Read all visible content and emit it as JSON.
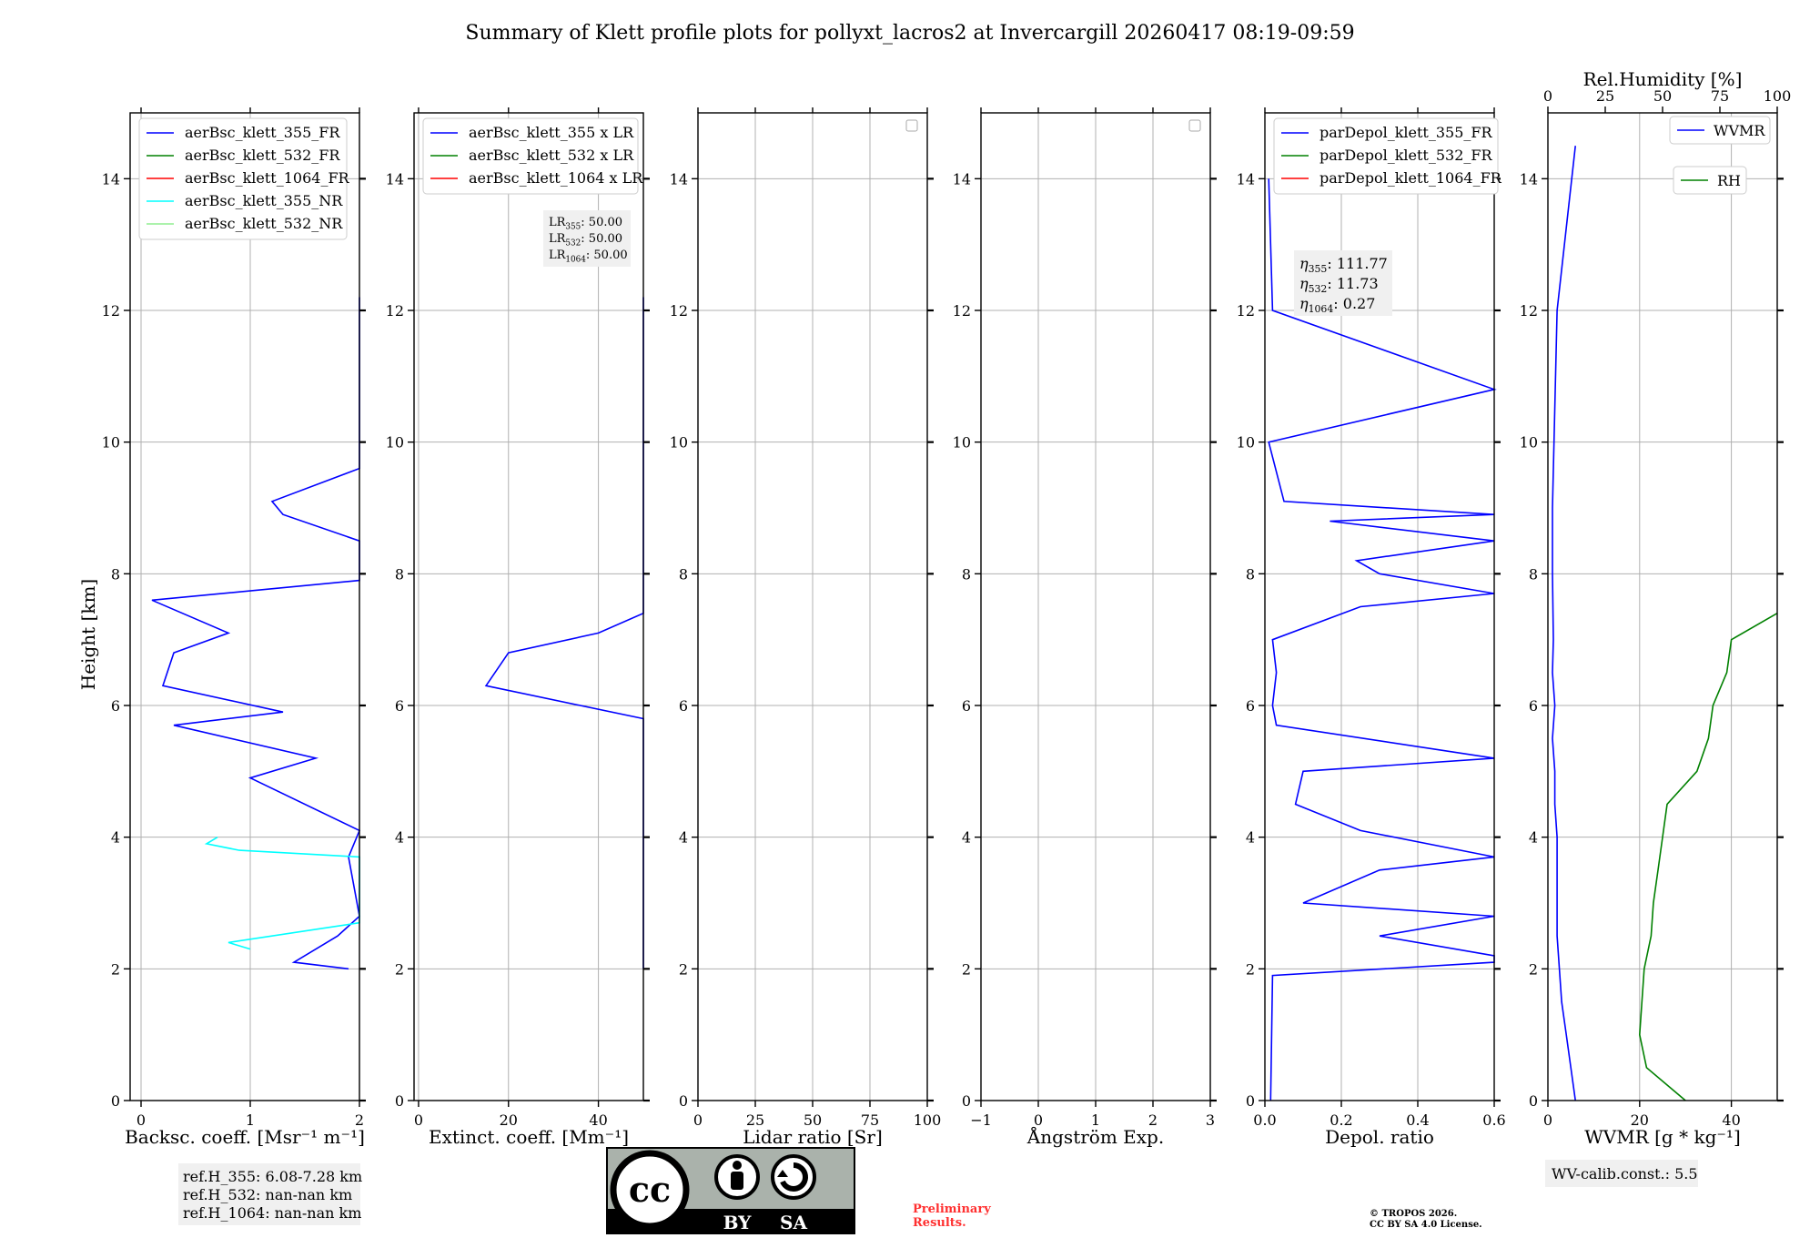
{
  "title": "Summary of Klett profile plots for pollyxt_lacros2 at Invercargill 20260417 08:19-09:59",
  "ylabel": "Height [km]",
  "panels": [
    {
      "id": "backscatter",
      "xlabel": "Backsc. coeff. [Msr⁻¹ m⁻¹]",
      "xlim": [
        -0.1,
        2.0
      ],
      "xticks": [
        0,
        1,
        2
      ],
      "xtick_labels": [
        "0",
        "1",
        "2"
      ],
      "legend": [
        {
          "label": "aerBsc_klett_355_FR",
          "color": "#0000ff"
        },
        {
          "label": "aerBsc_klett_532_FR",
          "color": "#008000"
        },
        {
          "label": "aerBsc_klett_1064_FR",
          "color": "#ff0000"
        },
        {
          "label": "aerBsc_klett_355_NR",
          "color": "#00ffff"
        },
        {
          "label": "aerBsc_klett_532_NR",
          "color": "#90ee90"
        }
      ],
      "refs": [
        "ref.H_355: 6.08-7.28 km",
        "ref.H_532: nan-nan km",
        "ref.H_1064: nan-nan km"
      ]
    },
    {
      "id": "extinction",
      "xlabel": "Extinct. coeff. [Mm⁻¹]",
      "xlim": [
        -1,
        50
      ],
      "xticks": [
        0,
        20,
        40
      ],
      "xtick_labels": [
        "0",
        "20",
        "40"
      ],
      "legend": [
        {
          "label": "aerBsc_klett_355 x LR",
          "color": "#0000ff"
        },
        {
          "label": "aerBsc_klett_532 x LR",
          "color": "#008000"
        },
        {
          "label": "aerBsc_klett_1064 x LR",
          "color": "#ff0000"
        }
      ],
      "lr_box": [
        {
          "base": "LR",
          "sub": "355",
          "value": ": 50.00"
        },
        {
          "base": "LR",
          "sub": "532",
          "value": ": 50.00"
        },
        {
          "base": "LR",
          "sub": "1064",
          "value": ": 50.00"
        }
      ]
    },
    {
      "id": "lidar_ratio",
      "xlabel": "Lidar ratio [Sr]",
      "xlim": [
        0,
        100
      ],
      "xticks": [
        0,
        25,
        50,
        75,
        100
      ],
      "xtick_labels": [
        "0",
        "25",
        "50",
        "75",
        "100"
      ]
    },
    {
      "id": "angstrom",
      "xlabel": "Ångström Exp.",
      "xlim": [
        -1,
        3
      ],
      "xticks": [
        -1,
        0,
        1,
        2,
        3
      ],
      "xtick_labels": [
        "−1",
        "0",
        "1",
        "2",
        "3"
      ]
    },
    {
      "id": "depol",
      "xlabel": "Depol. ratio",
      "xlim": [
        0,
        0.6
      ],
      "xticks": [
        0,
        0.2,
        0.4,
        0.6
      ],
      "xtick_labels": [
        "0.0",
        "0.2",
        "0.4",
        "0.6"
      ],
      "legend": [
        {
          "label": "parDepol_klett_355_FR",
          "color": "#0000ff"
        },
        {
          "label": "parDepol_klett_532_FR",
          "color": "#008000"
        },
        {
          "label": "parDepol_klett_1064_FR",
          "color": "#ff0000"
        }
      ],
      "eta_box": [
        {
          "base": "η",
          "sub": "355",
          "value": ": 111.77"
        },
        {
          "base": "η",
          "sub": "532",
          "value": ": 11.73"
        },
        {
          "base": "η",
          "sub": "1064",
          "value": ": 0.27"
        }
      ]
    },
    {
      "id": "wvmr",
      "xlabel": "WVMR [g * kg⁻¹]",
      "xlim": [
        0,
        50
      ],
      "xticks": [
        0,
        20,
        40
      ],
      "xtick_labels": [
        "0",
        "20",
        "40"
      ],
      "top_label": "Rel.Humidity [%]",
      "top_xticks": [
        0,
        25,
        50,
        75,
        100
      ],
      "top_xtick_labels": [
        "0",
        "25",
        "50",
        "75",
        "100"
      ],
      "legend": [
        {
          "label": "WVMR",
          "color": "#0000ff"
        },
        {
          "label": "RH",
          "color": "#008000"
        }
      ],
      "wv_calib": "WV-calib.const.: 5.5"
    }
  ],
  "chart_data": {
    "type": "line",
    "title": "Summary of Klett profile plots for pollyxt_lacros2 at Invercargill 20260417 08:19-09:59",
    "ylabel": "Height [km]",
    "ylim": [
      0,
      15
    ],
    "yticks": [
      0,
      2,
      4,
      6,
      8,
      10,
      12,
      14
    ],
    "grid": true,
    "series": [
      {
        "name": "aerBsc_klett_355_FR",
        "panel": "backscatter",
        "height": [
          2.0,
          2.1,
          2.5,
          2.8,
          3.7,
          4.1,
          4.9,
          5.2,
          5.7,
          5.9,
          6.3,
          6.8,
          7.1,
          7.6,
          7.9,
          8.5,
          8.9,
          9.1,
          9.6,
          10.8,
          11.1,
          12.2
        ],
        "value": [
          1.9,
          1.4,
          1.8,
          2.0,
          1.9,
          2.0,
          1.0,
          1.6,
          0.3,
          1.3,
          0.2,
          0.3,
          0.8,
          0.1,
          2.0,
          2.0,
          1.3,
          1.2,
          2.0,
          2.0,
          2.0,
          2.0
        ]
      },
      {
        "name": "aerBsc_klett_355_NR",
        "panel": "backscatter",
        "height": [
          2.3,
          2.4,
          2.7,
          3.7,
          3.8,
          3.9,
          4.0
        ],
        "value": [
          1.0,
          0.8,
          2.0,
          2.0,
          0.9,
          0.6,
          0.7
        ]
      },
      {
        "name": "aerBsc_klett_355 x LR",
        "panel": "extinction",
        "height": [
          2.0,
          2.2,
          2.5,
          2.8,
          3.7,
          4.1,
          5.2,
          5.8,
          6.3,
          6.8,
          7.1,
          7.4,
          7.7,
          9.0,
          9.6,
          10.8,
          11.1,
          12.2
        ],
        "value": [
          50,
          50,
          50,
          50,
          50,
          50,
          50,
          50,
          15,
          20,
          40,
          50,
          50,
          50,
          50,
          50,
          50,
          50
        ]
      },
      {
        "name": "parDepol_klett_355_FR",
        "panel": "depol",
        "height": [
          0.0,
          1.9,
          2.1,
          2.2,
          2.5,
          2.8,
          3.0,
          3.5,
          3.7,
          4.1,
          4.5,
          5.0,
          5.2,
          5.7,
          6.0,
          6.5,
          7.0,
          7.5,
          7.7,
          8.0,
          8.2,
          8.5,
          8.8,
          8.9,
          9.1,
          10.0,
          10.8,
          12.0,
          14.0
        ],
        "value": [
          0.015,
          0.02,
          0.6,
          0.6,
          0.3,
          0.6,
          0.1,
          0.3,
          0.6,
          0.25,
          0.08,
          0.1,
          0.6,
          0.03,
          0.02,
          0.03,
          0.02,
          0.25,
          0.6,
          0.3,
          0.24,
          0.6,
          0.17,
          0.6,
          0.05,
          0.01,
          0.6,
          0.02,
          0.01
        ]
      },
      {
        "name": "WVMR",
        "panel": "wvmr",
        "height": [
          0.0,
          0.5,
          1.0,
          1.5,
          2.0,
          2.5,
          3.0,
          3.5,
          4.0,
          4.5,
          5.0,
          5.5,
          6.0,
          6.5,
          7.0,
          8.0,
          9.0,
          12.0,
          14.5
        ],
        "value": [
          6,
          5,
          4,
          3,
          2.5,
          2,
          2,
          2,
          2,
          1.5,
          1.5,
          1.0,
          1.5,
          1.0,
          1.2,
          1.0,
          1.0,
          2.0,
          6
        ]
      },
      {
        "name": "RH",
        "panel": "wvmr",
        "axis": "top",
        "height": [
          0.0,
          0.5,
          1.0,
          1.5,
          2.0,
          2.5,
          3.0,
          3.5,
          4.0,
          4.5,
          5.0,
          5.5,
          6.0,
          6.5,
          7.0,
          7.4
        ],
        "value": [
          60,
          43,
          40,
          41,
          42,
          45,
          46,
          48,
          50,
          52,
          65,
          70,
          72,
          78,
          80,
          100
        ]
      }
    ]
  },
  "footer": {
    "cc_label": "cc",
    "by_label": "BY",
    "sa_label": "SA",
    "preliminary": [
      "Preliminary",
      "Results."
    ],
    "copyright": [
      "© TROPOS 2026.",
      "CC BY SA 4.0 License."
    ]
  }
}
